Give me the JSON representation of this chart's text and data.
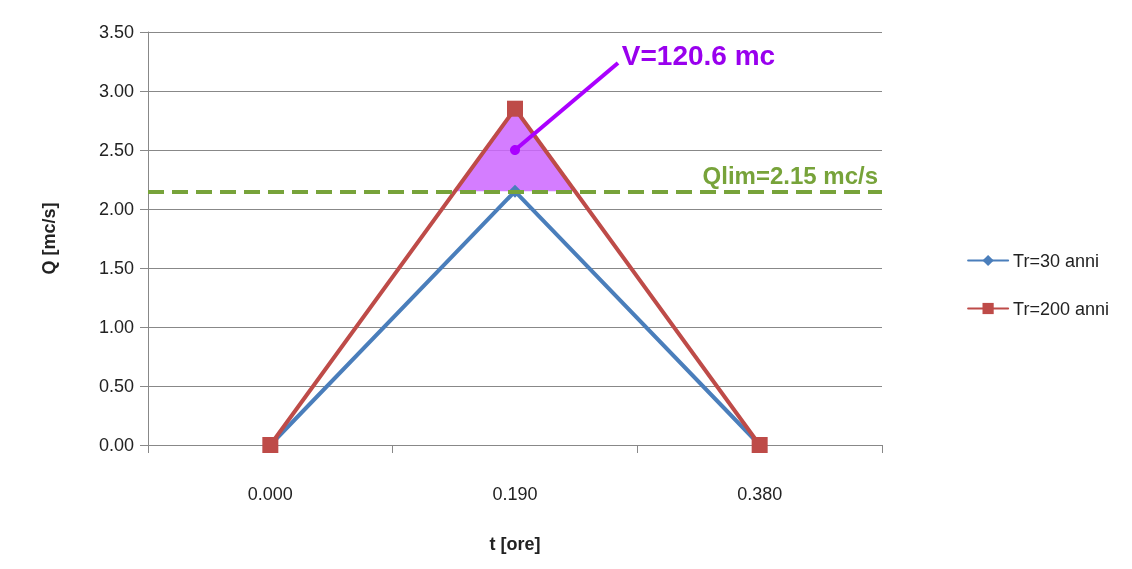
{
  "chart_data": {
    "type": "line",
    "xlabel": "t [ore]",
    "ylabel": "Q [mc/s]",
    "categories": [
      "0.000",
      "0.190",
      "0.380"
    ],
    "series": [
      {
        "name": "Tr=30 anni",
        "color": "#4a7ebb",
        "values": [
          0,
          2.15,
          0
        ],
        "marker": "diamond"
      },
      {
        "name": "Tr=200 anni",
        "color": "#be4b48",
        "values": [
          0,
          2.85,
          0
        ],
        "marker": "square"
      }
    ],
    "ylim": [
      0,
      3.5
    ],
    "yticks": [
      {
        "value": 0,
        "label": "0.00"
      },
      {
        "value": 0.5,
        "label": "0.50"
      },
      {
        "value": 1,
        "label": "1.00"
      },
      {
        "value": 1.5,
        "label": "1.50"
      },
      {
        "value": 2,
        "label": "2.00"
      },
      {
        "value": 2.5,
        "label": "2.50"
      },
      {
        "value": 3,
        "label": "3.00"
      },
      {
        "value": 3.5,
        "label": "3.50"
      }
    ],
    "grid": "y",
    "legend": "right",
    "ref_lines": [
      {
        "axis": "y",
        "value": 2.15,
        "label": "Qlim=2.15 mc/s",
        "color": "#77a33a",
        "line_style": "dashed"
      }
    ],
    "annotations": [
      {
        "text": "V=120.6 mc",
        "x": "0.190",
        "y": 2.5
      }
    ]
  }
}
